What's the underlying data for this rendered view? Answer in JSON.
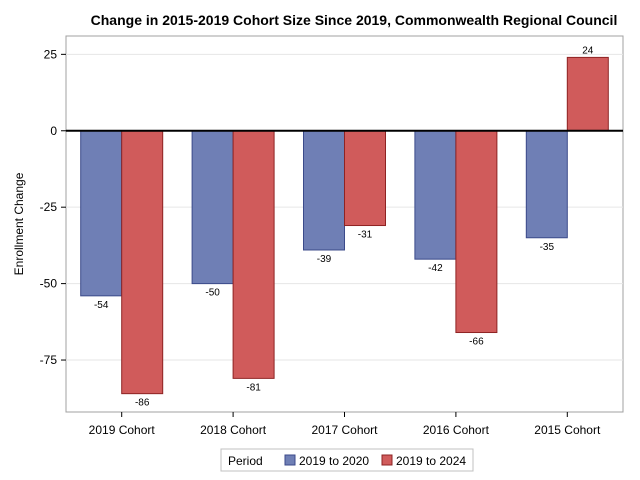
{
  "chart_data": {
    "type": "bar",
    "title": "Change in 2015-2019 Cohort Size Since 2019, Commonwealth Regional Council",
    "xlabel": "",
    "ylabel": "Enrollment Change",
    "ylim": [
      -92,
      31
    ],
    "yticks": [
      25,
      0,
      -25,
      -50,
      -75
    ],
    "categories": [
      "2019 Cohort",
      "2018 Cohort",
      "2017 Cohort",
      "2016 Cohort",
      "2015 Cohort"
    ],
    "series": [
      {
        "name": "2019 to 2020",
        "color": "#6f7fb5",
        "stroke": "#3b4a8a",
        "values": [
          -54,
          -50,
          -39,
          -42,
          -35
        ]
      },
      {
        "name": "2019 to 2024",
        "color": "#d05b5b",
        "stroke": "#8e2323",
        "values": [
          -86,
          -81,
          -31,
          -66,
          24
        ]
      }
    ],
    "legend": {
      "title": "Period",
      "position": "bottom-center"
    },
    "grid": true,
    "zero_line": true
  }
}
